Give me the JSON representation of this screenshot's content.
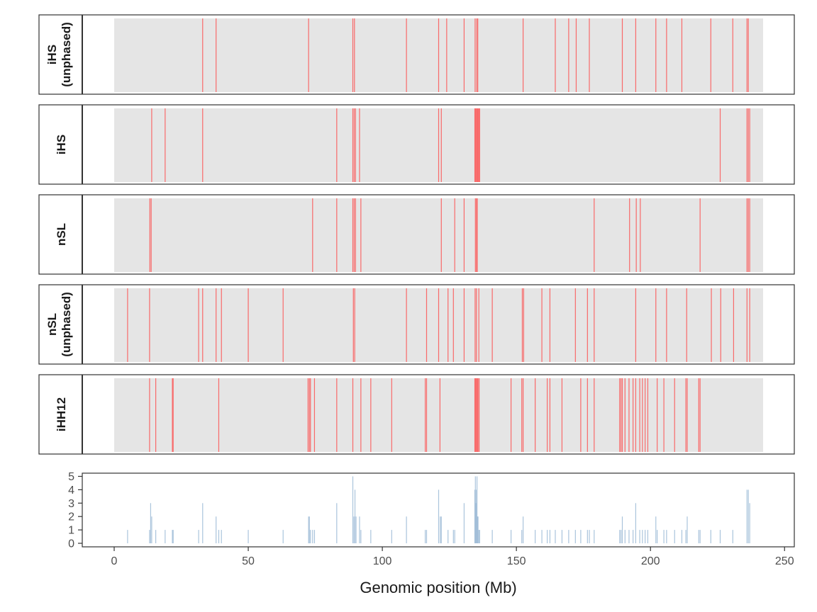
{
  "chart_data": [
    {
      "type": "heatmap",
      "panel": "iHS (unphased)",
      "strip_label_lines": [
        "iHS",
        "(unphased)"
      ],
      "xlim": [
        0,
        242
      ],
      "marks_mb": [
        33,
        38,
        72.5,
        89,
        89.6,
        109,
        121,
        124,
        130.5,
        134.6,
        135.2,
        135.6,
        152.5,
        164.5,
        169.5,
        172.3,
        177.2,
        189.5,
        194.5,
        202,
        206,
        211.7,
        222.5,
        230.7,
        236,
        236.5
      ]
    },
    {
      "type": "heatmap",
      "panel": "iHS",
      "strip_label_lines": [
        "iHS"
      ],
      "xlim": [
        0,
        242
      ],
      "marks_mb": [
        14,
        19,
        33,
        83,
        89,
        89.5,
        90,
        91.5,
        121,
        122,
        134.5,
        134.8,
        135.1,
        135.4,
        135.7,
        136,
        136.3,
        226,
        236,
        236.5,
        237
      ]
    },
    {
      "type": "heatmap",
      "panel": "nSL",
      "strip_label_lines": [
        "nSL"
      ],
      "xlim": [
        0,
        242
      ],
      "marks_mb": [
        13.3,
        13.8,
        74,
        83,
        89,
        89.5,
        90,
        92,
        122,
        127,
        130.5,
        134.7,
        135.1,
        135.4,
        179,
        192.2,
        194.7,
        196.2,
        218.5,
        236,
        236.5,
        237
      ]
    },
    {
      "type": "heatmap",
      "panel": "nSL (unphased)",
      "strip_label_lines": [
        "nSL",
        "(unphased)"
      ],
      "xlim": [
        0,
        242
      ],
      "marks_mb": [
        5,
        13.2,
        31.5,
        33,
        38,
        40,
        50,
        63,
        89.2,
        89.7,
        109,
        116.5,
        121,
        124.5,
        126.5,
        130.5,
        134.6,
        135.1,
        136,
        141,
        152.2,
        152.7,
        159.5,
        162.5,
        172,
        176.5,
        179,
        194.5,
        202,
        206,
        213.5,
        222.7,
        226.2,
        231,
        236,
        237
      ]
    },
    {
      "type": "heatmap",
      "panel": "iHH12",
      "strip_label_lines": [
        "iHH12"
      ],
      "xlim": [
        0,
        242
      ],
      "marks_mb": [
        13.2,
        15.5,
        21.7,
        22,
        39,
        72.3,
        72.8,
        73.2,
        74.7,
        83,
        89,
        92,
        95.7,
        103.5,
        116,
        116.5,
        121.5,
        134.5,
        134.8,
        135.1,
        135.4,
        135.7,
        136.1,
        148,
        152,
        152.5,
        157,
        161.5,
        162.5,
        167,
        174,
        176.5,
        179,
        188.5,
        189,
        189.5,
        190.5,
        192,
        193.5,
        194.5,
        196,
        197,
        198,
        199,
        202.5,
        205,
        209,
        213.2,
        213.7,
        218,
        218.5
      ]
    },
    {
      "type": "bar",
      "panel": "count",
      "ylim": [
        0,
        5
      ],
      "yticks": [
        "0",
        "1",
        "2",
        "3",
        "4",
        "5"
      ],
      "xlim": [
        -12.5,
        254.5
      ],
      "xticks": [
        "0",
        "50",
        "100",
        "150",
        "200",
        "250"
      ],
      "xlabel": "Genomic position (Mb)",
      "ylabel": "",
      "positions_mb": [
        5,
        13.2,
        13.6,
        14,
        15.5,
        19,
        21.7,
        22,
        31.5,
        33,
        38,
        39,
        40,
        50,
        63,
        72.5,
        72.8,
        73.2,
        74,
        74.7,
        83,
        89,
        89.4,
        89.8,
        90.2,
        91.5,
        92,
        95.7,
        103.5,
        109,
        116,
        116.5,
        121,
        121.6,
        122,
        124.5,
        126.5,
        127,
        130.5,
        134.5,
        134.7,
        134.9,
        135.1,
        135.3,
        135.5,
        135.7,
        136,
        136.3,
        141,
        148,
        152,
        152.5,
        157,
        159.5,
        161.5,
        162.5,
        164.5,
        167,
        169.5,
        172,
        174,
        176.5,
        177.2,
        179,
        188.5,
        189,
        189.5,
        190.5,
        192,
        193.5,
        194.5,
        196,
        197,
        198,
        199,
        202,
        202.5,
        205,
        206,
        209,
        211.7,
        213.2,
        213.7,
        218,
        218.5,
        222.5,
        226,
        230.7,
        236,
        236.5,
        237
      ],
      "values": [
        1,
        1,
        3,
        2,
        1,
        1,
        1,
        1,
        1,
        3,
        2,
        1,
        1,
        1,
        1,
        2,
        2,
        1,
        1,
        1,
        3,
        5,
        2,
        4,
        2,
        2,
        1,
        1,
        1,
        2,
        1,
        1,
        4,
        2,
        2,
        1,
        1,
        1,
        3,
        4,
        5,
        3,
        4,
        5,
        2,
        2,
        1,
        1,
        1,
        1,
        1,
        2,
        1,
        1,
        1,
        1,
        1,
        1,
        1,
        1,
        1,
        1,
        1,
        1,
        1,
        1,
        2,
        1,
        1,
        1,
        3,
        1,
        1,
        1,
        1,
        2,
        1,
        1,
        1,
        1,
        1,
        1,
        2,
        1,
        1,
        1,
        1,
        1,
        4,
        4,
        3
      ]
    }
  ],
  "colors": {
    "band_fill": "#e5e5e5",
    "mark": "#ff4040",
    "bar": "#9bbad6",
    "frame": "#333333"
  }
}
